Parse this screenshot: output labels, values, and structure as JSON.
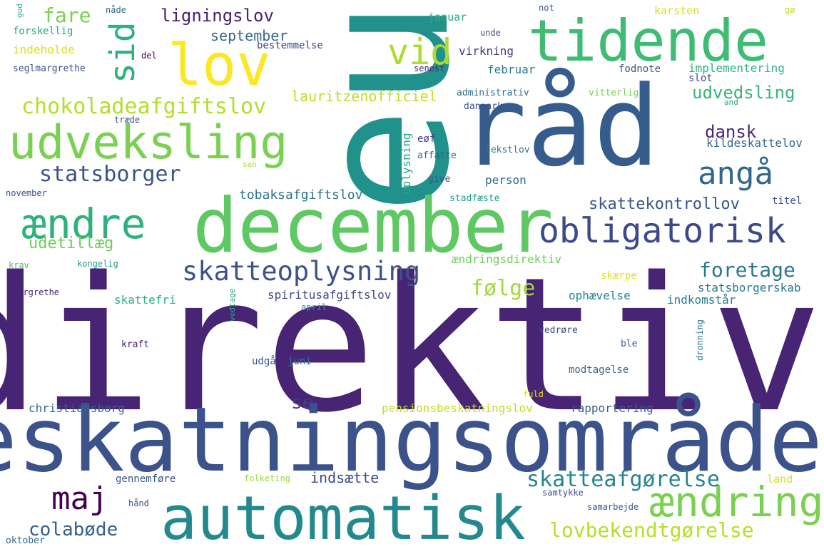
{
  "words": [
    {
      "text": "direktiv",
      "color": "#482475",
      "rotate": false
    },
    {
      "text": "beskatningsområde",
      "color": "#3b528b",
      "rotate": false
    },
    {
      "text": "eu",
      "color": "#21918c",
      "rotate": true
    },
    {
      "text": "råd",
      "color": "#365c8d",
      "rotate": false
    },
    {
      "text": "december",
      "color": "#5ec962",
      "rotate": false
    },
    {
      "text": "automatisk",
      "color": "#23898e",
      "rotate": false
    },
    {
      "text": "tidende",
      "color": "#3fbc73",
      "rotate": false
    },
    {
      "text": "lov",
      "color": "#fde725",
      "rotate": false
    },
    {
      "text": "udveksling",
      "color": "#7ad151",
      "rotate": false
    },
    {
      "text": "obligatorisk",
      "color": "#3e4989",
      "rotate": false
    },
    {
      "text": "ændre",
      "color": "#2db27d",
      "rotate": false
    },
    {
      "text": "ændring",
      "color": "#7ad151",
      "rotate": false
    },
    {
      "text": "skatteoplysning",
      "color": "#3b528b",
      "rotate": false
    },
    {
      "text": "vid",
      "color": "#aadc32",
      "rotate": false
    },
    {
      "text": "sid",
      "color": "#2db27d",
      "rotate": true
    },
    {
      "text": "angå",
      "color": "#31688e",
      "rotate": false
    },
    {
      "text": "maj",
      "color": "#440154",
      "rotate": false
    },
    {
      "text": "statsborger",
      "color": "#3b528b",
      "rotate": false
    },
    {
      "text": "chokoladeafgiftslov",
      "color": "#b5de2b",
      "rotate": false
    },
    {
      "text": "skatteafgørelse",
      "color": "#25858e",
      "rotate": false
    },
    {
      "text": "lovbekendtgørelse",
      "color": "#b5de2b",
      "rotate": false
    },
    {
      "text": "foretage",
      "color": "#2a788e",
      "rotate": false
    },
    {
      "text": "følge",
      "color": "#a0da39",
      "rotate": false
    },
    {
      "text": "udvedsling",
      "color": "#35b779",
      "rotate": false
    },
    {
      "text": "skattekontrollov",
      "color": "#39568c",
      "rotate": false
    },
    {
      "text": "fare",
      "color": "#7ad151",
      "rotate": false
    },
    {
      "text": "colabøde",
      "color": "#34618d",
      "rotate": false
    },
    {
      "text": "ligningslov",
      "color": "#481f70",
      "rotate": false
    },
    {
      "text": "dansk",
      "color": "#482878",
      "rotate": false
    },
    {
      "text": "udetillæg",
      "color": "#6ece58",
      "rotate": false
    },
    {
      "text": "lauritzenofficiel",
      "color": "#bddf26",
      "rotate": false
    },
    {
      "text": "indsætte",
      "color": "#3e4a89",
      "rotate": false
    },
    {
      "text": "se",
      "color": "#433e85",
      "rotate": false
    },
    {
      "text": "september",
      "color": "#31688e",
      "rotate": false
    },
    {
      "text": "tobaksafgiftslov",
      "color": "#2c728e",
      "rotate": false
    },
    {
      "text": "oplysning",
      "color": "#22a884",
      "rotate": true
    },
    {
      "text": "person",
      "color": "#31688e",
      "rotate": false
    },
    {
      "text": "ændringsdirektiv",
      "color": "#6ccd5a",
      "rotate": false
    },
    {
      "text": "kildeskattelov",
      "color": "#31688e",
      "rotate": false
    },
    {
      "text": "statsborgerskab",
      "color": "#2a788e",
      "rotate": false
    },
    {
      "text": "pensionsbeskatningslov",
      "color": "#c2df23",
      "rotate": false
    },
    {
      "text": "christiansborg",
      "color": "#31688e",
      "rotate": false
    },
    {
      "text": "rapportering",
      "color": "#35608d",
      "rotate": false
    },
    {
      "text": "skattefri",
      "color": "#29af7f",
      "rotate": false
    },
    {
      "text": "spiritusafgiftslov",
      "color": "#3e4989",
      "rotate": false
    },
    {
      "text": "ophævelse",
      "color": "#25848e",
      "rotate": false
    },
    {
      "text": "indkomstår",
      "color": "#287c8e",
      "rotate": false
    },
    {
      "text": "bestemmelse",
      "color": "#3f4788",
      "rotate": false
    },
    {
      "text": "virkning",
      "color": "#443983",
      "rotate": false
    },
    {
      "text": "februar",
      "color": "#2a788e",
      "rotate": false
    },
    {
      "text": "januar",
      "color": "#29af7f",
      "rotate": false
    },
    {
      "text": "implementering",
      "color": "#2db27d",
      "rotate": false
    },
    {
      "text": "fodnote",
      "color": "#3b528b",
      "rotate": false
    },
    {
      "text": "slot",
      "color": "#3e4989",
      "rotate": false
    },
    {
      "text": "modtagelse",
      "color": "#31688e",
      "rotate": false
    },
    {
      "text": "gennemføre",
      "color": "#3b528b",
      "rotate": false
    },
    {
      "text": "udgå",
      "color": "#3b528b",
      "rotate": false
    },
    {
      "text": "juni",
      "color": "#2a788e",
      "rotate": false
    },
    {
      "text": "karsten",
      "color": "#d2e21b",
      "rotate": false
    },
    {
      "text": "skærpe",
      "color": "#e5e419",
      "rotate": false
    },
    {
      "text": "titel",
      "color": "#3b528b",
      "rotate": false
    },
    {
      "text": "eøf",
      "color": "#433e85",
      "rotate": false
    },
    {
      "text": "indeholde",
      "color": "#d8e219",
      "rotate": false
    },
    {
      "text": "forskellig",
      "color": "#22a884",
      "rotate": false
    },
    {
      "text": "seglmargrethe",
      "color": "#3b528b",
      "rotate": false
    },
    {
      "text": "administrativ",
      "color": "#2c728e",
      "rotate": false
    },
    {
      "text": "vitterlig",
      "color": "#75d054",
      "rotate": false
    },
    {
      "text": "danmark",
      "color": "#3b528b",
      "rotate": false
    },
    {
      "text": "affatte",
      "color": "#31688e",
      "rotate": false
    },
    {
      "text": "tekstlov",
      "color": "#2a788e",
      "rotate": false
    },
    {
      "text": "give",
      "color": "#3b528b",
      "rotate": false
    },
    {
      "text": "stadfæste",
      "color": "#1f9e89",
      "rotate": false
    },
    {
      "text": "november",
      "color": "#3b528b",
      "rotate": false
    },
    {
      "text": "krav",
      "color": "#4ac16d",
      "rotate": false
    },
    {
      "text": "kongelig",
      "color": "#1f9e89",
      "rotate": false
    },
    {
      "text": "margrethe",
      "color": "#482173",
      "rotate": false
    },
    {
      "text": "april",
      "color": "#20a386",
      "rotate": false
    },
    {
      "text": "vedtage",
      "color": "#22a884",
      "rotate": true
    },
    {
      "text": "vedrøre",
      "color": "#3e4989",
      "rotate": false
    },
    {
      "text": "kraft",
      "color": "#482475",
      "rotate": false
    },
    {
      "text": "ble",
      "color": "#35608d",
      "rotate": false
    },
    {
      "text": "dronning",
      "color": "#2c728e",
      "rotate": true
    },
    {
      "text": "fuld",
      "color": "#e5e419",
      "rotate": false
    },
    {
      "text": "land",
      "color": "#d0e11c",
      "rotate": false
    },
    {
      "text": "folketing",
      "color": "#9bd93c",
      "rotate": false
    },
    {
      "text": "samtykke",
      "color": "#3b528b",
      "rotate": false
    },
    {
      "text": "samarbejde",
      "color": "#3b528b",
      "rotate": false
    },
    {
      "text": "hånd",
      "color": "#3b528b",
      "rotate": false
    },
    {
      "text": "oktober",
      "color": "#31688e",
      "rotate": false
    },
    {
      "text": "nåde",
      "color": "#31688e",
      "rotate": false
    },
    {
      "text": "gud",
      "color": "#35b779",
      "rotate": true
    },
    {
      "text": "del",
      "color": "#440154",
      "rotate": false
    },
    {
      "text": "senest",
      "color": "#482475",
      "rotate": false
    },
    {
      "text": "unde",
      "color": "#3e4989",
      "rotate": false
    },
    {
      "text": "not",
      "color": "#3b528b",
      "rotate": false
    },
    {
      "text": "gø",
      "color": "#bddf26",
      "rotate": false
    },
    {
      "text": "and",
      "color": "#20a386",
      "rotate": false
    },
    {
      "text": "træde",
      "color": "#3b528b",
      "rotate": false
    },
    {
      "text": "sen",
      "color": "#addc30",
      "rotate": false
    }
  ]
}
